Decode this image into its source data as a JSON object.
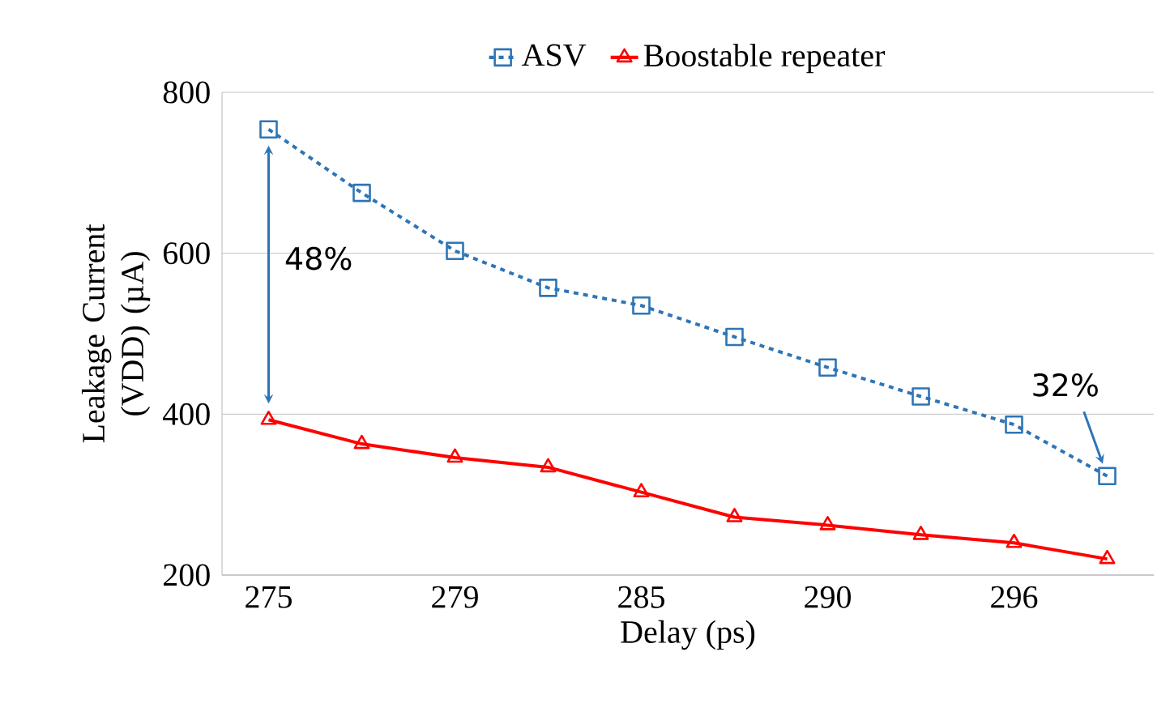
{
  "chart_data": {
    "type": "line",
    "xlabel": "Delay (ps)",
    "ylabel": "Leakage Current (VDD) (µA)",
    "categories": [
      "275",
      null,
      "279",
      null,
      "285",
      null,
      "290",
      null,
      "296",
      null
    ],
    "series": [
      {
        "name": "ASV",
        "color": "#2e75b6",
        "marker": "square",
        "line_style": "dashed",
        "values": [
          754,
          675,
          603,
          557,
          535,
          496,
          458,
          422,
          387,
          323
        ]
      },
      {
        "name": "Boostable repeater",
        "color": "#ff0000",
        "marker": "triangle",
        "line_style": "solid",
        "values": [
          393,
          363,
          346,
          334,
          303,
          272,
          262,
          250,
          240,
          220
        ]
      }
    ],
    "annotations": [
      "48%",
      "32%"
    ],
    "ylim": [
      200,
      800
    ],
    "yticks": [
      200,
      400,
      600,
      800
    ],
    "grid": "y",
    "legend": "top"
  }
}
